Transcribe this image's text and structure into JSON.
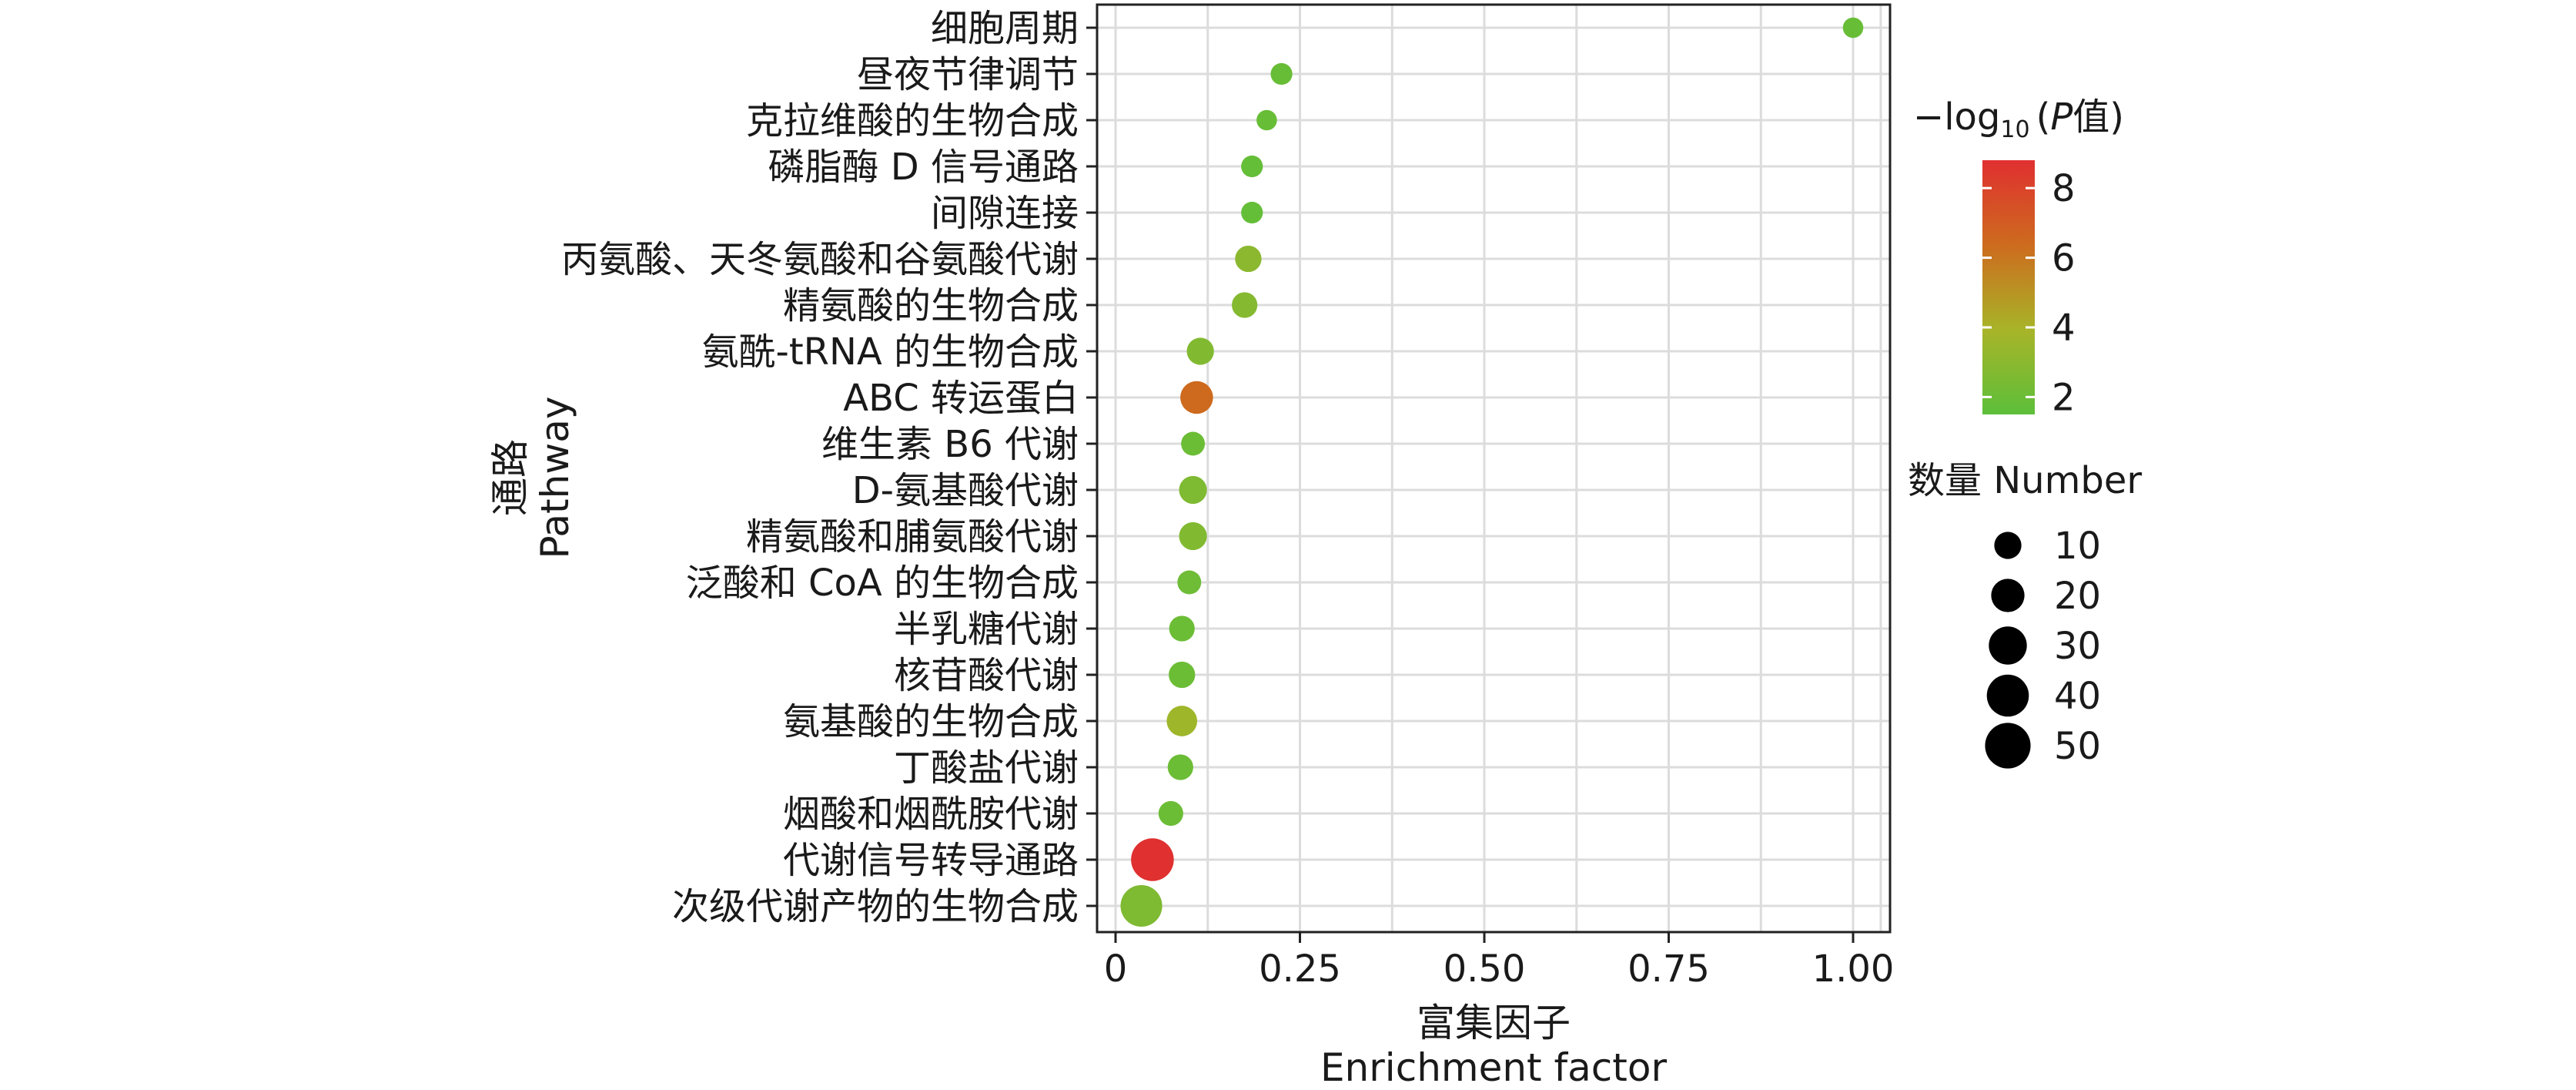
{
  "chart_data": {
    "type": "scatter",
    "title": "",
    "xlabel": "富集因子",
    "xlabel_en": "Enrichment factor",
    "ylabel": "通路",
    "ylabel_en": "Pathway",
    "xlim": [
      0,
      1.04
    ],
    "xticks": [
      0,
      0.25,
      0.5,
      0.75,
      1.0
    ],
    "xtick_labels": [
      "0",
      "0.25",
      "0.50",
      "0.75",
      "1.00"
    ],
    "grid": true,
    "legend_position": "right",
    "color_legend": {
      "title_prefix": "−log",
      "title_sub": "10",
      "title_open": "(",
      "title_var": "P",
      "title_suffix": "值)",
      "ticks": [
        8,
        6,
        4,
        2
      ],
      "range": [
        1.5,
        8.8
      ],
      "colors": [
        "#5cbf3a",
        "#a8b428",
        "#cd6b1e",
        "#e03030"
      ]
    },
    "size_legend": {
      "title": "数量 Number",
      "values": [
        10,
        20,
        30,
        40,
        50
      ]
    },
    "points": [
      {
        "pathway": "细胞周期",
        "x": 1.0,
        "neglog10p": 1.9,
        "number": 3
      },
      {
        "pathway": "昼夜节律调节",
        "x": 0.225,
        "neglog10p": 1.9,
        "number": 4
      },
      {
        "pathway": "克拉维酸的生物合成",
        "x": 0.205,
        "neglog10p": 1.9,
        "number": 3
      },
      {
        "pathway": "磷脂酶 D 信号通路",
        "x": 0.185,
        "neglog10p": 1.8,
        "number": 4
      },
      {
        "pathway": "间隙连接",
        "x": 0.185,
        "neglog10p": 1.8,
        "number": 4
      },
      {
        "pathway": "丙氨酸、天冬氨酸和谷氨酸代谢",
        "x": 0.18,
        "neglog10p": 3.0,
        "number": 9
      },
      {
        "pathway": "精氨酸的生物合成",
        "x": 0.175,
        "neglog10p": 2.8,
        "number": 8
      },
      {
        "pathway": "氨酰-tRNA 的生物合成",
        "x": 0.115,
        "neglog10p": 2.7,
        "number": 10
      },
      {
        "pathway": "ABC 转运蛋白",
        "x": 0.11,
        "neglog10p": 6.4,
        "number": 19
      },
      {
        "pathway": "维生素 B6 代谢",
        "x": 0.105,
        "neglog10p": 2.0,
        "number": 6
      },
      {
        "pathway": "D-氨基酸代谢",
        "x": 0.105,
        "neglog10p": 2.6,
        "number": 11
      },
      {
        "pathway": "精氨酸和脯氨酸代谢",
        "x": 0.105,
        "neglog10p": 2.7,
        "number": 11
      },
      {
        "pathway": "泛酸和 CoA 的生物合成",
        "x": 0.1,
        "neglog10p": 2.1,
        "number": 6
      },
      {
        "pathway": "半乳糖代谢",
        "x": 0.09,
        "neglog10p": 2.0,
        "number": 8
      },
      {
        "pathway": "核苷酸代谢",
        "x": 0.09,
        "neglog10p": 2.0,
        "number": 9
      },
      {
        "pathway": "氨基酸的生物合成",
        "x": 0.09,
        "neglog10p": 3.6,
        "number": 15
      },
      {
        "pathway": "丁酸盐代谢",
        "x": 0.088,
        "neglog10p": 2.0,
        "number": 8
      },
      {
        "pathway": "烟酸和烟酰胺代谢",
        "x": 0.075,
        "neglog10p": 2.0,
        "number": 7
      },
      {
        "pathway": "代谢信号转导通路",
        "x": 0.05,
        "neglog10p": 8.8,
        "number": 42
      },
      {
        "pathway": "次级代谢产物的生物合成",
        "x": 0.035,
        "neglog10p": 2.6,
        "number": 39
      }
    ]
  }
}
